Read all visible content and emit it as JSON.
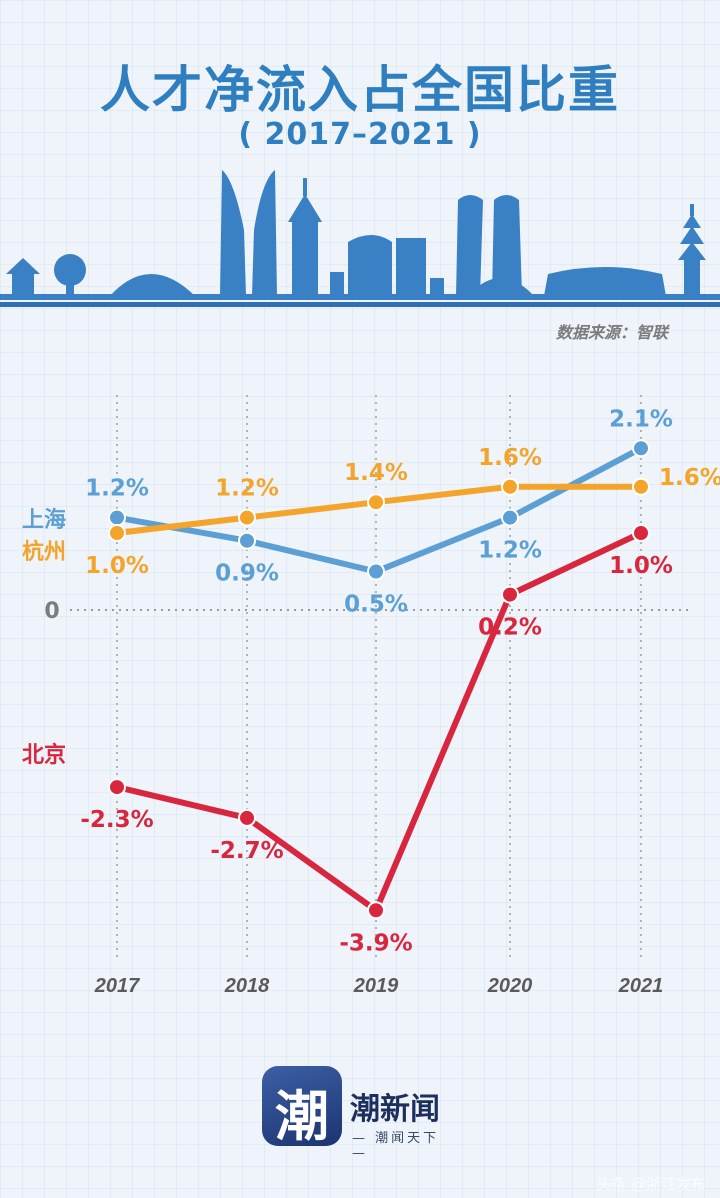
{
  "header": {
    "title": "人才净流入占全国比重",
    "subtitle": "( 2017–2021 )",
    "source": "数据来源：智联"
  },
  "logo": {
    "glyph": "潮",
    "name": "潮新闻",
    "slogan": "— 潮闻天下 —"
  },
  "watermark": "头条 @浙江发布",
  "colors": {
    "title": "#2f7fc0",
    "shanghai": "#5b9fd4",
    "hangzhou": "#f4a42a",
    "beijing": "#d7263d",
    "axis_label": "#7c7c7c",
    "skyline": "#3a80c4"
  },
  "chart_data": {
    "type": "line",
    "categories": [
      "2017",
      "2018",
      "2019",
      "2020",
      "2021"
    ],
    "zero_label": "0",
    "series": [
      {
        "name": "上海",
        "color": "#5b9fd4",
        "values": [
          1.2,
          0.9,
          0.5,
          1.2,
          2.1
        ],
        "labels": [
          "1.2%",
          "0.9%",
          "0.5%",
          "1.2%",
          "2.1%"
        ],
        "label_pos": [
          "above",
          "below",
          "below",
          "below",
          "above"
        ]
      },
      {
        "name": "杭州",
        "color": "#f4a42a",
        "values": [
          1.0,
          1.2,
          1.4,
          1.6,
          1.6
        ],
        "labels": [
          "1.0%",
          "1.2%",
          "1.4%",
          "1.6%",
          "1.6%"
        ],
        "label_pos": [
          "below",
          "above",
          "above",
          "above",
          "right"
        ]
      },
      {
        "name": "北京",
        "color": "#d7263d",
        "values": [
          -2.3,
          -2.7,
          -3.9,
          0.2,
          1.0
        ],
        "labels": [
          "-2.3%",
          "-2.7%",
          "-3.9%",
          "0.2%",
          "1.0%"
        ],
        "label_pos": [
          "below",
          "below",
          "below",
          "below",
          "below"
        ]
      }
    ]
  }
}
